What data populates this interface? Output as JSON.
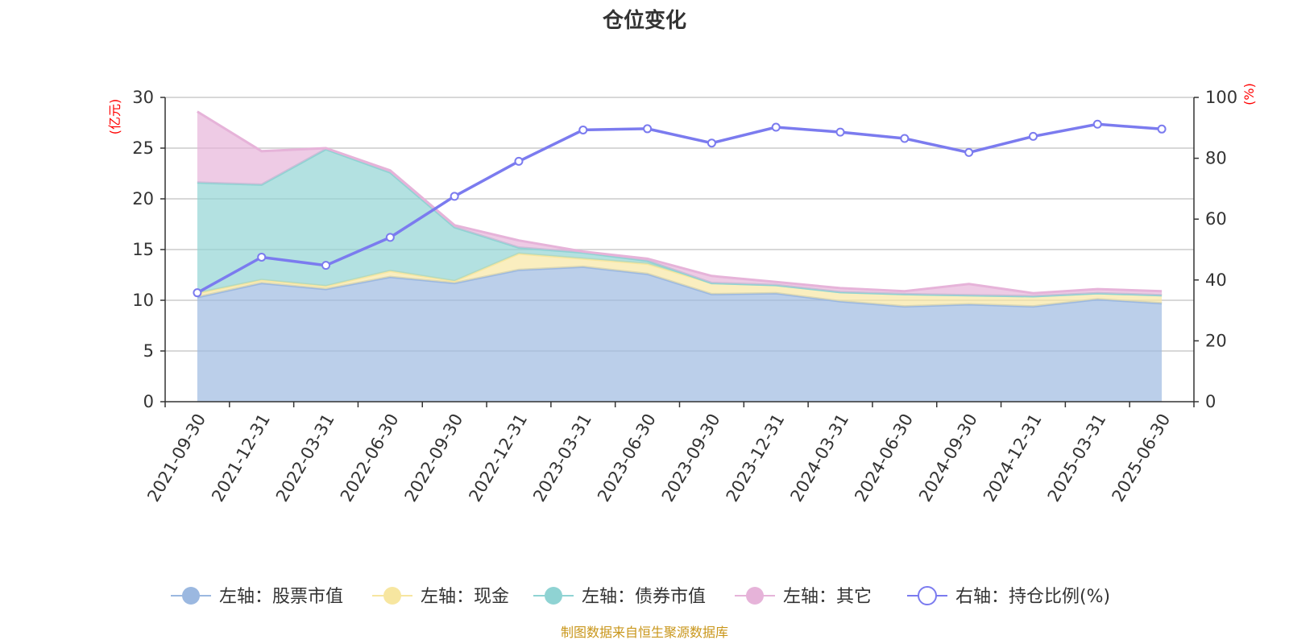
{
  "chart_data": {
    "type": "area",
    "title": "仓位变化",
    "left_axis_unit": "(亿元)",
    "right_axis_unit": "(%)",
    "categories": [
      "2021-09-30",
      "2021-12-31",
      "2022-03-31",
      "2022-06-30",
      "2022-09-30",
      "2022-12-31",
      "2023-03-31",
      "2023-06-30",
      "2023-09-30",
      "2023-12-31",
      "2024-03-31",
      "2024-06-30",
      "2024-09-30",
      "2024-12-31",
      "2025-03-31",
      "2025-06-30"
    ],
    "left_ylim": [
      0,
      30
    ],
    "left_yticks": [
      "0",
      "5",
      "10",
      "15",
      "20",
      "25",
      "30"
    ],
    "right_ylim": [
      0,
      100
    ],
    "right_yticks": [
      "0",
      "20",
      "40",
      "60",
      "80",
      "100"
    ],
    "grid": true,
    "legend_position": "bottom",
    "series": [
      {
        "name": "左轴：股票市值",
        "axis": "left",
        "stacked": true,
        "color": "#9bb8e0",
        "values": [
          10.3,
          11.7,
          11.1,
          12.3,
          11.7,
          13.0,
          13.3,
          12.6,
          10.6,
          10.7,
          9.9,
          9.4,
          9.6,
          9.4,
          10.1,
          9.7
        ]
      },
      {
        "name": "左轴：现金",
        "axis": "left",
        "stacked": true,
        "color": "#f7e6a0",
        "values": [
          0.4,
          0.3,
          0.3,
          0.6,
          0.2,
          1.6,
          0.8,
          1.0,
          1.1,
          0.8,
          0.9,
          1.2,
          0.9,
          1.0,
          0.6,
          0.8
        ]
      },
      {
        "name": "左轴：债券市值",
        "axis": "left",
        "stacked": true,
        "color": "#8fd3d3",
        "values": [
          10.9,
          9.4,
          13.5,
          9.7,
          5.3,
          0.6,
          0.6,
          0.3,
          0.0,
          0.0,
          0.0,
          0.0,
          0.0,
          0.0,
          0.0,
          0.0
        ]
      },
      {
        "name": "左轴：其它",
        "axis": "left",
        "stacked": true,
        "color": "#e6b3d9",
        "values": [
          7.0,
          3.3,
          0.1,
          0.2,
          0.2,
          0.7,
          0.1,
          0.2,
          0.7,
          0.3,
          0.4,
          0.3,
          1.1,
          0.3,
          0.4,
          0.4
        ]
      },
      {
        "name": "右轴：持仓比例(%)",
        "axis": "right",
        "type": "line",
        "color": "#7b7bef",
        "values": [
          35.8,
          47.5,
          44.8,
          54.0,
          67.5,
          79.0,
          89.3,
          89.7,
          85.0,
          90.2,
          88.6,
          86.5,
          81.9,
          87.2,
          91.2,
          89.6
        ]
      }
    ],
    "source": "制图数据来自恒生聚源数据库"
  }
}
